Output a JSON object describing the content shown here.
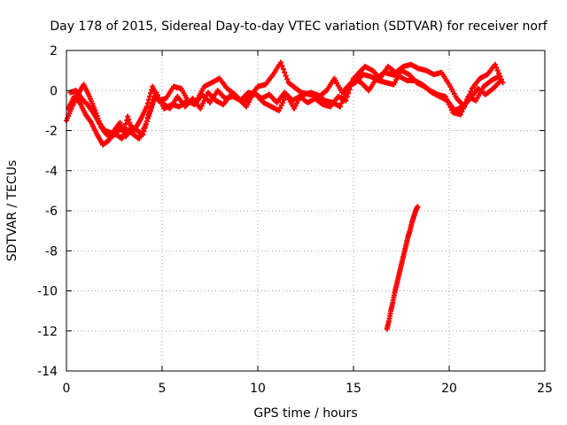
{
  "chart_data": {
    "type": "scatter",
    "title": "Day 178 of 2015, Sidereal Day-to-day VTEC variation (SDTVAR) for receiver norf",
    "xlabel": "GPS time / hours",
    "ylabel": "SDTVAR / TECUs",
    "xlim": [
      0,
      25
    ],
    "ylim": [
      -14,
      2
    ],
    "xticks": [
      0,
      5,
      10,
      15,
      20,
      25
    ],
    "yticks": [
      -14,
      -12,
      -10,
      -8,
      -6,
      -4,
      -2,
      0,
      2
    ],
    "xtick_labels": [
      "0",
      "5",
      "10",
      "15",
      "20",
      "25"
    ],
    "ytick_labels": [
      "-14",
      "-12",
      "-10",
      "-8",
      "-6",
      "-4",
      "-2",
      "0",
      "2"
    ],
    "grid": true,
    "marker": "plus",
    "color": "#ff0000",
    "series": [
      {
        "name": "track-a",
        "x": [
          0.0,
          0.3,
          0.6,
          0.9,
          1.2,
          1.5,
          1.8,
          2.1,
          2.4,
          2.7,
          3.0,
          3.3,
          3.6,
          3.9,
          4.2,
          4.5,
          4.8,
          5.2,
          5.6,
          6.0,
          6.4,
          6.8,
          7.2,
          7.6,
          8.0,
          8.4,
          8.8,
          9.2,
          9.6,
          10.0,
          10.4,
          10.8,
          11.2,
          11.6,
          12.0,
          12.4,
          12.8,
          13.2,
          13.6,
          14.0,
          14.4,
          14.8,
          15.2,
          15.6,
          16.0,
          16.4,
          16.8,
          17.2,
          17.6,
          18.0,
          18.4,
          18.8,
          19.2,
          19.6,
          20.0,
          20.4,
          20.8,
          21.2,
          21.6,
          22.0,
          22.4,
          22.8
        ],
        "y": [
          -1.5,
          -0.8,
          -0.2,
          0.3,
          -0.3,
          -1.0,
          -1.8,
          -2.2,
          -2.3,
          -2.0,
          -1.9,
          -2.1,
          -1.9,
          -1.4,
          -0.8,
          0.2,
          -0.5,
          -0.4,
          0.2,
          0.1,
          -0.6,
          -0.5,
          0.2,
          0.4,
          0.6,
          0.1,
          -0.2,
          -0.6,
          -0.3,
          0.2,
          0.3,
          0.8,
          1.4,
          0.4,
          0.1,
          -0.2,
          -0.1,
          -0.3,
          0.0,
          0.6,
          -0.1,
          0.3,
          0.8,
          1.2,
          1.0,
          0.6,
          1.2,
          0.9,
          1.2,
          1.3,
          1.1,
          1.0,
          0.8,
          0.9,
          0.3,
          -0.4,
          -0.8,
          0.1,
          0.6,
          0.8,
          1.3,
          0.4
        ]
      },
      {
        "name": "track-b",
        "x": [
          0.1,
          0.4,
          0.7,
          1.0,
          1.3,
          1.6,
          1.9,
          2.2,
          2.5,
          2.8,
          3.1,
          3.4,
          3.7,
          4.0,
          4.3,
          4.6,
          5.0,
          5.4,
          5.8,
          6.2,
          6.6,
          7.0,
          7.4,
          7.8,
          8.2,
          8.6,
          9.0,
          9.4,
          9.8,
          10.2,
          10.6,
          11.0,
          11.4,
          11.8,
          12.2,
          12.6,
          13.0,
          13.4,
          13.8,
          14.2,
          14.6,
          15.0,
          15.4,
          15.8,
          16.2,
          16.6,
          17.0,
          17.4,
          17.8,
          18.2,
          18.6,
          19.0,
          19.4,
          19.8,
          20.2,
          20.6,
          21.0,
          21.4,
          21.8,
          22.2,
          22.6
        ],
        "y": [
          -0.9,
          -0.3,
          -0.6,
          -1.2,
          -1.6,
          -2.2,
          -2.7,
          -2.5,
          -2.0,
          -1.6,
          -2.3,
          -1.8,
          -2.0,
          -2.2,
          -1.2,
          -0.3,
          -0.6,
          -0.9,
          -0.3,
          -0.8,
          -0.4,
          -0.9,
          -0.1,
          -0.5,
          -0.7,
          -0.2,
          -0.4,
          -0.8,
          -0.1,
          -0.4,
          -0.2,
          -0.6,
          -0.1,
          -0.5,
          -0.3,
          -0.6,
          -0.4,
          -0.7,
          -0.8,
          -0.3,
          -0.5,
          0.6,
          0.4,
          0.0,
          0.6,
          0.9,
          0.8,
          0.7,
          0.5,
          0.5,
          0.3,
          0.0,
          -0.2,
          -0.3,
          -1.1,
          -1.2,
          -0.3,
          -0.5,
          0.2,
          0.5,
          0.7
        ]
      },
      {
        "name": "track-c",
        "x": [
          0.2,
          0.5,
          0.8,
          1.1,
          1.4,
          1.7,
          2.0,
          2.3,
          2.6,
          2.9,
          3.2,
          3.5,
          3.8,
          4.1,
          4.4,
          4.7,
          5.1,
          5.5,
          5.9,
          6.3,
          6.7,
          7.1,
          7.5,
          7.9,
          8.3,
          8.7,
          9.1,
          9.5,
          9.9,
          10.3,
          10.7,
          11.1,
          11.5,
          11.9,
          12.3,
          12.7,
          13.1,
          13.5,
          13.9,
          14.3,
          14.7,
          15.1,
          15.5,
          15.9,
          16.3,
          16.7,
          17.1,
          17.5,
          17.9,
          18.3,
          18.7,
          19.1,
          19.5,
          19.9,
          20.3,
          20.7,
          21.1,
          21.5,
          21.9,
          22.3,
          22.7
        ],
        "y": [
          -0.1,
          0.0,
          -0.4,
          -0.7,
          -1.1,
          -1.6,
          -2.0,
          -2.1,
          -2.2,
          -2.4,
          -1.3,
          -2.2,
          -2.4,
          -1.8,
          -1.0,
          -0.1,
          -0.9,
          -0.7,
          -0.8,
          -0.5,
          -0.7,
          -0.2,
          -0.6,
          0.0,
          -0.4,
          -0.3,
          -0.5,
          -0.1,
          -0.2,
          -0.6,
          -0.8,
          -1.0,
          -0.2,
          -0.9,
          -0.1,
          -0.2,
          -0.2,
          -0.5,
          -0.6,
          -0.8,
          0.2,
          0.4,
          0.8,
          0.7,
          0.5,
          0.4,
          0.3,
          1.0,
          0.8,
          0.4,
          0.2,
          -0.1,
          -0.3,
          -0.5,
          -1.0,
          -0.8,
          -0.4,
          0.1,
          -0.2,
          0.1,
          0.5
        ]
      },
      {
        "name": "track-d",
        "x": [
          16.75,
          16.85,
          16.95,
          17.05,
          17.15,
          17.25,
          17.35,
          17.45,
          17.55,
          17.65,
          17.75,
          17.85,
          17.95,
          18.05,
          18.15,
          18.25,
          18.35
        ],
        "y": [
          -11.9,
          -11.5,
          -11.0,
          -10.6,
          -10.1,
          -9.7,
          -9.3,
          -8.9,
          -8.5,
          -8.1,
          -7.7,
          -7.3,
          -7.0,
          -6.6,
          -6.3,
          -6.0,
          -5.8
        ]
      }
    ]
  }
}
